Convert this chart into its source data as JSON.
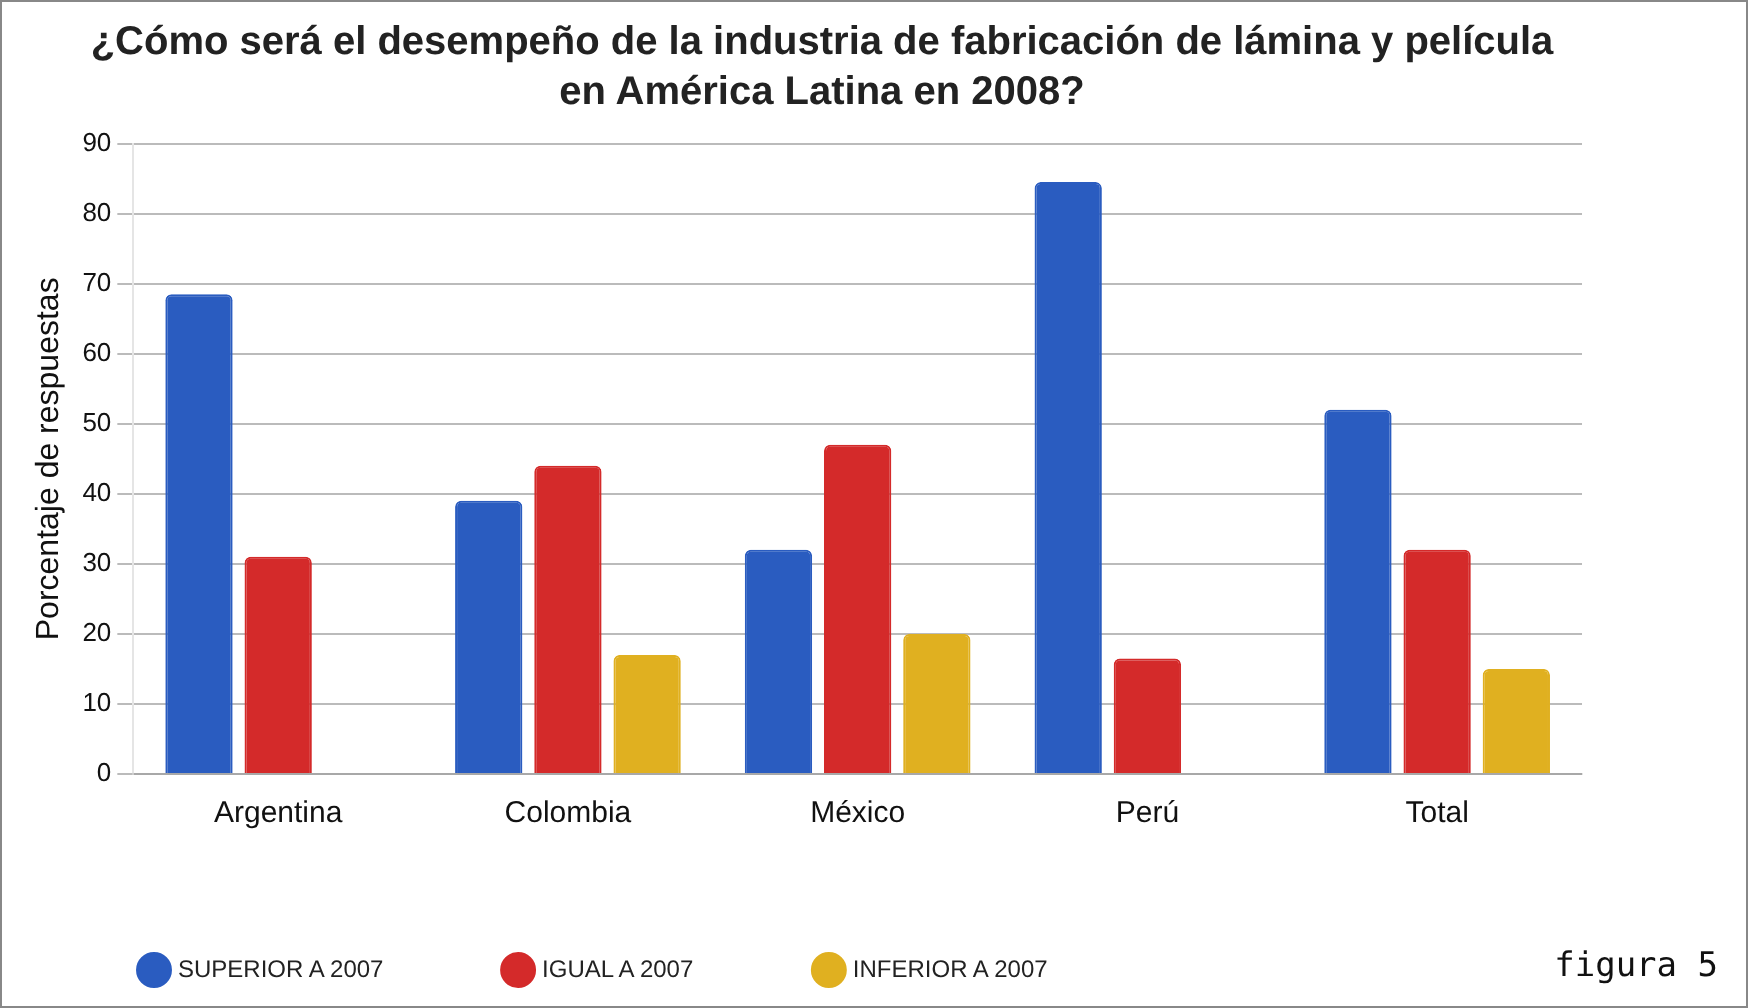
{
  "chart_data": {
    "type": "bar",
    "title": "¿Cómo será el desempeño de la industria de fabricación de lámina y película en América Latina en 2008?",
    "ylabel": "Porcentaje de respuestas",
    "categories": [
      "Argentina",
      "Colombia",
      "México",
      "Perú",
      "Total"
    ],
    "series": [
      {
        "name": "SUPERIOR A 2007",
        "color": "#2a5cc0",
        "values": [
          68.5,
          39,
          32,
          84.5,
          52
        ]
      },
      {
        "name": "IGUAL A 2007",
        "color": "#d42a2a",
        "values": [
          31,
          44,
          47,
          16.5,
          32
        ]
      },
      {
        "name": "INFERIOR A 2007",
        "color": "#e0b020",
        "values": [
          null,
          17,
          20,
          null,
          15
        ]
      }
    ],
    "ylim": [
      0,
      90
    ],
    "yticks": [
      0,
      10,
      20,
      30,
      40,
      50,
      60,
      70,
      80,
      90
    ],
    "grid": "y",
    "legend": "bottom",
    "annotations": [
      "figura 5"
    ]
  }
}
